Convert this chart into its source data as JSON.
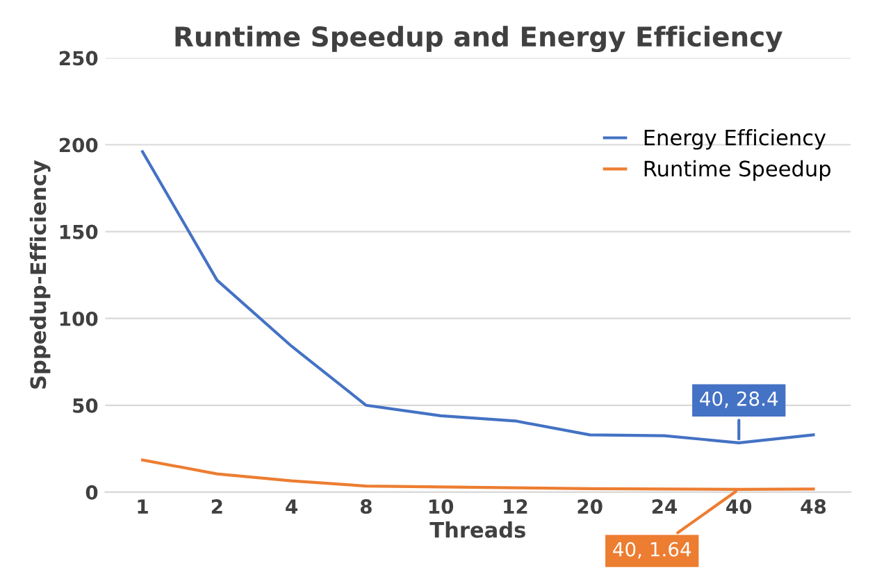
{
  "chart_data": {
    "type": "line",
    "title": "Runtime Speedup and Energy Efficiency",
    "xlabel": "Threads",
    "ylabel": "Sppedup-Efficiency",
    "categories": [
      "1",
      "2",
      "4",
      "8",
      "10",
      "12",
      "20",
      "24",
      "40",
      "48"
    ],
    "series": [
      {
        "name": "Energy Efficiency",
        "color": "#4472c4",
        "values": [
          196,
          122,
          84,
          50,
          44,
          41,
          33,
          32.5,
          28.4,
          33
        ]
      },
      {
        "name": "Runtime Speedup",
        "color": "#ed7d31",
        "values": [
          18.5,
          10.5,
          6.5,
          3.5,
          3,
          2.5,
          2,
          1.8,
          1.64,
          1.8
        ]
      }
    ],
    "annotations": [
      {
        "text": "40, 28.4",
        "x": "40",
        "y": 28.4
      },
      {
        "text": "40, 1.64",
        "x": "40",
        "y": 1.64
      }
    ],
    "ylim": [
      0,
      250
    ],
    "yticks": [
      0,
      50,
      100,
      150,
      200,
      250
    ],
    "grid": "y",
    "legend": "top right",
    "marker": "none",
    "line_style": "solid"
  }
}
